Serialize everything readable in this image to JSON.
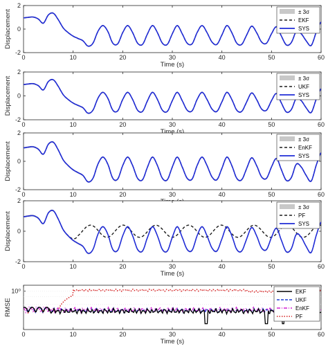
{
  "colors": {
    "band": "#c8c8c8",
    "sys": "#1f2bd6",
    "estimate_dashed": "#1a1a1a",
    "ekf_rmse": "#000000",
    "ukf_rmse": "#1f3fd6",
    "enkf_rmse": "#d21fd2",
    "pf_rmse": "#d42020",
    "grid": "#e0e0e0"
  },
  "chart_data": [
    {
      "type": "line",
      "panel": 1,
      "xlabel": "Time (s)",
      "ylabel": "Displacement",
      "xlim": [
        0,
        60
      ],
      "ylim": [
        -2,
        2
      ],
      "xticks": [
        0,
        10,
        20,
        30,
        40,
        50,
        60
      ],
      "yticks": [
        -2,
        0,
        2
      ],
      "legend": [
        "± 3σ",
        "EKF",
        "SYS"
      ],
      "legend_position": "top-right",
      "estimate": "EKF",
      "estimate_tracks_system": true
    },
    {
      "type": "line",
      "panel": 2,
      "xlabel": "Time (s)",
      "ylabel": "Displacement",
      "xlim": [
        0,
        60
      ],
      "ylim": [
        -2,
        2
      ],
      "xticks": [
        0,
        10,
        20,
        30,
        40,
        50,
        60
      ],
      "yticks": [
        -2,
        0,
        2
      ],
      "legend": [
        "± 3σ",
        "UKF",
        "SYS"
      ],
      "legend_position": "top-right",
      "estimate": "UKF",
      "estimate_tracks_system": true
    },
    {
      "type": "line",
      "panel": 3,
      "xlabel": "Time (s)",
      "ylabel": "Displacement",
      "xlim": [
        0,
        60
      ],
      "ylim": [
        -2,
        2
      ],
      "xticks": [
        0,
        10,
        20,
        30,
        40,
        50,
        60
      ],
      "yticks": [
        -2,
        0,
        2
      ],
      "legend": [
        "± 3σ",
        "EnKF",
        "SYS"
      ],
      "legend_position": "top-right",
      "estimate": "EnKF",
      "estimate_tracks_system": true
    },
    {
      "type": "line",
      "panel": 4,
      "xlabel": "Time (s)",
      "ylabel": "Displacement",
      "xlim": [
        0,
        60
      ],
      "ylim": [
        -2,
        2
      ],
      "xticks": [
        0,
        10,
        20,
        30,
        40,
        50,
        60
      ],
      "yticks": [
        -2,
        0,
        2
      ],
      "legend": [
        "± 3σ",
        "PF",
        "SYS"
      ],
      "legend_position": "top-right",
      "estimate": "PF",
      "estimate_tracks_system": false,
      "pf_amplitude": 0.4
    },
    {
      "type": "line",
      "panel": 5,
      "xlabel": "Time (s)",
      "ylabel": "RMSE",
      "yscale": "log",
      "xlim": [
        0,
        60
      ],
      "ylim": [
        0.01,
        2
      ],
      "xticks": [
        0,
        10,
        20,
        30,
        40,
        50,
        60
      ],
      "ytick_label": "10⁰",
      "legend": [
        "EKF",
        "UKF",
        "EnKF",
        "PF"
      ],
      "legend_position": "top-right",
      "pf_level": 1.1
    }
  ],
  "system_signal": {
    "x": [
      0,
      1,
      2,
      3,
      4,
      5,
      6,
      7,
      8,
      9,
      10,
      11,
      12,
      13,
      14,
      15,
      16,
      17,
      18,
      19,
      20,
      21,
      22,
      23,
      24,
      25,
      26,
      27,
      28,
      29,
      30,
      31,
      32,
      33,
      34,
      35,
      36,
      37,
      38,
      39,
      40,
      41,
      42,
      43,
      44,
      45,
      46,
      47,
      48,
      49,
      50,
      51,
      52,
      53,
      54,
      55,
      56,
      57,
      58,
      59,
      60
    ],
    "y": [
      0.95,
      1.0,
      1.02,
      0.85,
      0.5,
      1.2,
      1.35,
      0.8,
      0.1,
      -0.3,
      -0.6,
      -0.8,
      -1.0,
      -1.45,
      -1.2,
      -0.2,
      0.3,
      -0.2,
      -1.2,
      -1.25,
      -0.3,
      0.3,
      -0.3,
      -1.2,
      -1.3,
      -0.4,
      0.3,
      -0.3,
      -1.2,
      -1.3,
      -0.4,
      0.3,
      -0.4,
      -1.2,
      -1.25,
      -0.3,
      0.3,
      -0.3,
      -1.1,
      -1.3,
      -0.5,
      0.3,
      -0.3,
      -1.2,
      -1.3,
      -0.5,
      0.25,
      -0.3,
      -1.1,
      -1.2,
      -0.4,
      0.2,
      -0.6,
      -1.35,
      -1.15,
      -0.2,
      -0.4,
      -1.0,
      -1.4,
      -0.3,
      0.6
    ]
  }
}
